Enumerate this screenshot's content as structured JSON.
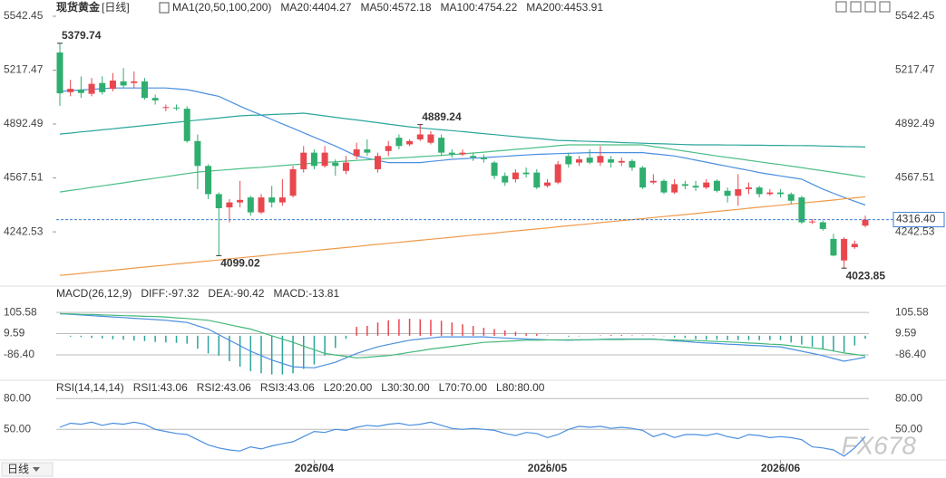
{
  "chart_data": [
    {
      "type": "candlestick",
      "title": "现货黄金",
      "subtitle": "[日线]",
      "indicator": "MA1(20,50,100,200)",
      "categories": [
        null,
        null,
        null,
        null,
        null,
        null,
        null,
        null,
        null,
        null,
        null,
        null,
        null,
        null,
        null,
        null,
        null,
        null,
        null,
        null,
        null,
        null,
        null,
        null,
        "2026/04",
        null,
        null,
        null,
        null,
        null,
        null,
        null,
        null,
        null,
        null,
        null,
        null,
        null,
        null,
        null,
        null,
        null,
        null,
        null,
        null,
        null,
        "2026/05",
        null,
        null,
        null,
        null,
        null,
        null,
        null,
        null,
        null,
        null,
        null,
        null,
        null,
        null,
        null,
        null,
        null,
        null,
        null,
        null,
        null,
        "2026/06",
        null,
        null,
        null,
        null,
        null,
        null,
        null,
        null
      ],
      "open": [
        5324,
        5085,
        5100,
        5075,
        5140,
        5105,
        5150,
        5140,
        5150,
        5050,
        4990,
        4992,
        4985,
        4790,
        4640,
        4470,
        4390,
        4420,
        4450,
        4360,
        4450,
        4420,
        4460,
        4620,
        4720,
        4640,
        4660,
        4610,
        4700,
        4740,
        4620,
        4730,
        4810,
        4770,
        4800,
        4780,
        4810,
        4720,
        4710,
        4700,
        4690,
        4660,
        4580,
        4560,
        4600,
        4600,
        4520,
        4540,
        4700,
        4660,
        4690,
        4660,
        4680,
        4660,
        4670,
        4630,
        4540,
        4550,
        4480,
        4530,
        4520,
        4510,
        4550,
        4490,
        4460,
        4500,
        4510,
        4470,
        4480,
        4470,
        4450,
        4300,
        4300,
        4200,
        4070,
        4150,
        4280
      ],
      "close": [
        5078,
        5105,
        5080,
        5135,
        5085,
        5155,
        5125,
        5150,
        5050,
        5035,
        4995,
        4990,
        4790,
        4640,
        4470,
        4385,
        4420,
        4435,
        4360,
        4450,
        4420,
        4450,
        4620,
        4720,
        4640,
        4720,
        4640,
        4660,
        4740,
        4720,
        4700,
        4760,
        4760,
        4790,
        4830,
        4830,
        4720,
        4710,
        4720,
        4690,
        4680,
        4580,
        4540,
        4600,
        4590,
        4510,
        4540,
        4650,
        4650,
        4680,
        4660,
        4700,
        4660,
        4670,
        4630,
        4510,
        4550,
        4480,
        4530,
        4520,
        4510,
        4540,
        4490,
        4460,
        4500,
        4510,
        4470,
        4480,
        4470,
        4430,
        4300,
        4305,
        4260,
        4100,
        4200,
        4170,
        4316.4
      ],
      "high": [
        5379.74,
        5160,
        5180,
        5170,
        5180,
        5200,
        5230,
        5210,
        5170,
        5070,
        5010,
        5010,
        5000,
        4830,
        4650,
        4480,
        4440,
        4550,
        4460,
        4470,
        4520,
        4560,
        4640,
        4760,
        4740,
        4760,
        4680,
        4700,
        4780,
        4800,
        4720,
        4790,
        4830,
        4800,
        4889.24,
        4850,
        4830,
        4740,
        4740,
        4720,
        4710,
        4670,
        4600,
        4620,
        4630,
        4620,
        4560,
        4670,
        4720,
        4700,
        4740,
        4760,
        4700,
        4690,
        4680,
        4640,
        4590,
        4560,
        4560,
        4550,
        4550,
        4560,
        4560,
        4510,
        4590,
        4540,
        4520,
        4500,
        4500,
        4480,
        4460,
        4320,
        4310,
        4230,
        4210,
        4190,
        4340
      ],
      "low": [
        5002,
        5060,
        5050,
        5060,
        5070,
        5090,
        5110,
        5110,
        5040,
        5010,
        4970,
        4975,
        4780,
        4500,
        4440,
        4099.02,
        4300,
        4390,
        4340,
        4350,
        4390,
        4400,
        4450,
        4600,
        4620,
        4630,
        4580,
        4590,
        4680,
        4700,
        4600,
        4700,
        4740,
        4760,
        4790,
        4770,
        4700,
        4690,
        4700,
        4670,
        4660,
        4560,
        4520,
        4540,
        4570,
        4500,
        4510,
        4530,
        4630,
        4640,
        4650,
        4640,
        4630,
        4640,
        4610,
        4500,
        4530,
        4470,
        4470,
        4500,
        4490,
        4500,
        4480,
        4420,
        4400,
        4470,
        4450,
        4460,
        4450,
        4410,
        4290,
        4290,
        4250,
        4095,
        4023.85,
        4140,
        4270
      ],
      "up_color": "#e8474e",
      "down_color": "#2fae6f",
      "series": [
        {
          "name": "MA20:4404.27",
          "color": "#4a8fe0",
          "values": [
            5090,
            5094,
            5098,
            5102,
            5106,
            5110,
            5110,
            5110,
            5110,
            5110,
            5110,
            5105,
            5100,
            5087,
            5073,
            5060,
            5030,
            5000,
            4973,
            4947,
            4920,
            4893,
            4867,
            4840,
            4813,
            4787,
            4760,
            4730,
            4700,
            4687,
            4673,
            4660,
            4660,
            4660,
            4660,
            4667,
            4673,
            4680,
            4683,
            4687,
            4690,
            4694,
            4698,
            4702,
            4706,
            4710,
            4712,
            4714,
            4716,
            4718,
            4720,
            4720,
            4720,
            4720,
            4720,
            4720,
            4713,
            4707,
            4700,
            4688,
            4675,
            4663,
            4650,
            4638,
            4625,
            4613,
            4600,
            4590,
            4580,
            4570,
            4560,
            4530,
            4500,
            4475,
            4450,
            4427,
            4404.27
          ]
        },
        {
          "name": "MA50:4572.18",
          "color": "#4cbf85",
          "values": [
            4483,
            4492,
            4501,
            4511,
            4520,
            4529,
            4538,
            4548,
            4557,
            4566,
            4575,
            4585,
            4594,
            4603,
            4608,
            4613,
            4618,
            4623,
            4628,
            4632,
            4637,
            4642,
            4647,
            4652,
            4657,
            4661,
            4665,
            4669,
            4673,
            4677,
            4681,
            4685,
            4688,
            4692,
            4696,
            4700,
            4704,
            4708,
            4712,
            4718,
            4723,
            4729,
            4734,
            4740,
            4745,
            4751,
            4756,
            4762,
            4767,
            4767,
            4767,
            4767,
            4767,
            4767,
            4767,
            4767,
            4757,
            4748,
            4738,
            4729,
            4719,
            4710,
            4700,
            4691,
            4683,
            4674,
            4665,
            4656,
            4648,
            4639,
            4630,
            4620,
            4611,
            4601,
            4592,
            4582,
            4572.18
          ]
        },
        {
          "name": "MA100:4754.22",
          "color": "#2aa59c",
          "values": [
            4832,
            4838,
            4845,
            4851,
            4858,
            4864,
            4871,
            4877,
            4884,
            4890,
            4897,
            4903,
            4910,
            4916,
            4923,
            4929,
            4936,
            4942,
            4945,
            4947,
            4950,
            4953,
            4955,
            4958,
            4950,
            4942,
            4933,
            4925,
            4917,
            4909,
            4901,
            4892,
            4884,
            4876,
            4870,
            4864,
            4858,
            4853,
            4847,
            4841,
            4835,
            4829,
            4823,
            4817,
            4811,
            4806,
            4800,
            4794,
            4792,
            4790,
            4788,
            4786,
            4784,
            4781,
            4779,
            4777,
            4775,
            4773,
            4771,
            4769,
            4767,
            4767,
            4767,
            4766,
            4766,
            4765,
            4765,
            4764,
            4764,
            4763,
            4763,
            4762,
            4760,
            4759,
            4757,
            4756,
            4754.22
          ]
        },
        {
          "name": "MA200:4453.91",
          "color": "#ef9a4a",
          "values": [
            3980,
            3986,
            3992,
            3999,
            4005,
            4011,
            4017,
            4024,
            4030,
            4036,
            4042,
            4049,
            4055,
            4061,
            4067,
            4073,
            4080,
            4086,
            4092,
            4098,
            4105,
            4111,
            4117,
            4123,
            4130,
            4136,
            4142,
            4148,
            4154,
            4161,
            4167,
            4173,
            4179,
            4186,
            4192,
            4198,
            4204,
            4210,
            4217,
            4223,
            4229,
            4235,
            4242,
            4248,
            4254,
            4260,
            4266,
            4273,
            4279,
            4285,
            4291,
            4298,
            4304,
            4310,
            4316,
            4322,
            4329,
            4335,
            4341,
            4347,
            4353,
            4360,
            4366,
            4372,
            4378,
            4385,
            4391,
            4397,
            4403,
            4410,
            4416,
            4422,
            4428,
            4434,
            4441,
            4447,
            4453.91
          ]
        }
      ],
      "ylim": [
        3921,
        5586
      ],
      "yticks": [
        4242.53,
        4567.51,
        4892.49,
        5217.47,
        5542.45
      ],
      "annotations": [
        5379.74,
        4889.24,
        4099.02,
        4023.85
      ],
      "price_line": {
        "value": 4316.4,
        "label": "4316.40"
      },
      "footer": "日线",
      "watermark": "FX678"
    },
    {
      "type": "macd",
      "title": "MACD(26,12,9)",
      "series": [
        {
          "name": "DIFF:-97.32",
          "color": "#4a8fe0",
          "values": [
            100,
            97,
            94,
            91,
            88,
            85,
            82,
            79,
            76,
            73,
            70,
            65,
            60,
            45,
            30,
            5,
            -20,
            -45,
            -70,
            -90,
            -110,
            -125,
            -140,
            -143,
            -145,
            -133,
            -120,
            -100,
            -80,
            -65,
            -50,
            -40,
            -30,
            -20,
            -15,
            -10,
            -5,
            -5,
            -5,
            -5,
            -5,
            -8,
            -10,
            -13,
            -15,
            -16,
            -18,
            -19,
            -20,
            -19,
            -18,
            -16,
            -15,
            -15,
            -15,
            -15,
            -15,
            -19,
            -23,
            -26,
            -30,
            -33,
            -35,
            -38,
            -40,
            -43,
            -45,
            -48,
            -50,
            -60,
            -70,
            -80,
            -90,
            -103,
            -115,
            -106,
            -97.32
          ]
        },
        {
          "name": "DEA:-90.42",
          "color": "#44b87a",
          "values": [
            100,
            99,
            97,
            96,
            94,
            93,
            91,
            90,
            88,
            87,
            85,
            81,
            78,
            74,
            70,
            60,
            50,
            40,
            30,
            15,
            0,
            -15,
            -30,
            -47,
            -63,
            -80,
            -87,
            -93,
            -100,
            -97,
            -93,
            -90,
            -83,
            -75,
            -68,
            -60,
            -54,
            -48,
            -42,
            -36,
            -30,
            -28,
            -25,
            -23,
            -20,
            -20,
            -19,
            -19,
            -18,
            -18,
            -18,
            -17,
            -17,
            -17,
            -16,
            -16,
            -16,
            -18,
            -19,
            -21,
            -22,
            -24,
            -26,
            -28,
            -30,
            -33,
            -35,
            -38,
            -40,
            -45,
            -50,
            -55,
            -60,
            -69,
            -78,
            -84,
            -90.42
          ]
        }
      ],
      "histogram": {
        "name": "MACD:-13.81",
        "up_color": "#e8474e",
        "down_color": "#2aa59c",
        "values": [
          0,
          -4,
          -6,
          -10,
          -12,
          -16,
          -18,
          -22,
          -24,
          -28,
          -30,
          -32,
          -36,
          -58,
          -80,
          -90,
          -115,
          -140,
          -160,
          -170,
          -175,
          -175,
          -170,
          -150,
          -130,
          -90,
          -55,
          -14,
          40,
          45,
          60,
          70,
          75,
          77,
          75,
          72,
          68,
          60,
          52,
          44,
          36,
          30,
          24,
          18,
          10,
          8,
          2,
          0,
          -4,
          -2,
          0,
          2,
          4,
          4,
          2,
          2,
          2,
          -2,
          -8,
          -10,
          -16,
          -18,
          -18,
          -20,
          -20,
          -20,
          -20,
          -20,
          -20,
          -30,
          -40,
          -50,
          -60,
          -68,
          -74,
          -44,
          -13.81
        ]
      },
      "ylim": [
        -193,
        151
      ],
      "yticks": [
        {
          "value": -86.4,
          "label": "-86.40"
        },
        9.59,
        105.58
      ]
    },
    {
      "type": "line",
      "title": "RSI(14,14,14)",
      "series": [
        {
          "name": "RSI1:43.06",
          "color": "#4a8fe0",
          "values": [
            52,
            56,
            55,
            57,
            54,
            56,
            55,
            57,
            55,
            50,
            48,
            46,
            45,
            40,
            35,
            32,
            30,
            29,
            33,
            31,
            34,
            36,
            38,
            43,
            48,
            47,
            50,
            49,
            52,
            54,
            53,
            55,
            56,
            54,
            55,
            57,
            54,
            51,
            50,
            51,
            50,
            49,
            46,
            44,
            47,
            46,
            42,
            45,
            50,
            53,
            52,
            53,
            51,
            52,
            51,
            49,
            43,
            46,
            42,
            45,
            45,
            44,
            46,
            43,
            41,
            45,
            44,
            42,
            43,
            42,
            40,
            33,
            32,
            30,
            24,
            32,
            43.06
          ]
        }
      ],
      "legend": [
        {
          "name": "RSI2:43.06",
          "color": "#2aa59c"
        },
        {
          "name": "RSI3:43.06",
          "color": "#4a8fe0"
        },
        {
          "name": "L20:20.00",
          "color": "#b0b0b0"
        },
        {
          "name": "L30:30.00",
          "color": "#b0b0b0"
        },
        {
          "name": "L70:70.00",
          "color": "#b0b0b0"
        },
        {
          "name": "L80:80.00",
          "color": "#b0b0b0"
        }
      ],
      "ylim": [
        23,
        96
      ],
      "yticks": [
        {
          "value": 50,
          "label": "50.00"
        },
        {
          "value": 80,
          "label": "80.00"
        }
      ]
    }
  ]
}
